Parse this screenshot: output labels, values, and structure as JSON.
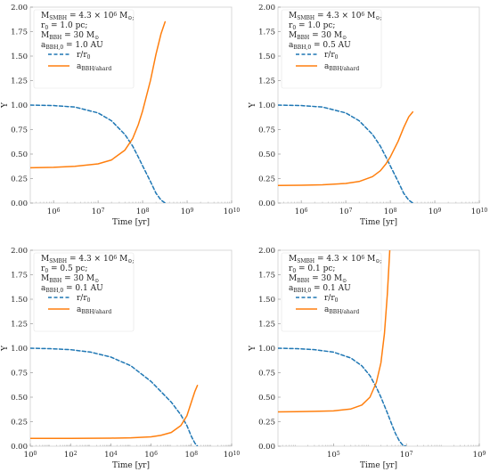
{
  "chart_data": [
    {
      "type": "line",
      "xscale": "log",
      "xlabel": "Time [yr]",
      "ylabel": "Y",
      "xlim": [
        300000,
        10000000000
      ],
      "ylim": [
        0,
        2
      ],
      "xticks": [
        1000000,
        10000000,
        100000000,
        1000000000,
        10000000000
      ],
      "xtick_labels": [
        "10^6",
        "10^7",
        "10^8",
        "10^9",
        "10^10"
      ],
      "yticks": [
        0,
        0.25,
        0.5,
        0.75,
        1.0,
        1.25,
        1.5,
        1.75,
        2.0
      ],
      "ytick_labels": [
        "0.00",
        "0.25",
        "0.50",
        "0.75",
        "1.00",
        "1.25",
        "1.50",
        "1.75",
        "2.00"
      ],
      "legend": {
        "placement": "top-left",
        "lines": [
          "M_SMBH = 4.3 × 10^6 M_⊙;",
          "r_0 = 1.0 pc;",
          "M_BBH = 30 M_⊙",
          "a_BBH,0 = 1.0 AU"
        ],
        "series_labels": [
          "r/r_0",
          "a_BBH/a_hard"
        ]
      },
      "series": [
        {
          "name": "r/r_0",
          "style": "dashed",
          "color": "#1f77b4",
          "x": [
            300000,
            1000000,
            3000000,
            10000000,
            20000000,
            40000000,
            60000000,
            80000000,
            100000000,
            150000000,
            200000000,
            260000000,
            320000000
          ],
          "values": [
            1.0,
            0.995,
            0.98,
            0.92,
            0.84,
            0.7,
            0.58,
            0.47,
            0.38,
            0.22,
            0.1,
            0.03,
            0.0
          ]
        },
        {
          "name": "a_BBH/a_hard",
          "style": "solid",
          "color": "#ff7f0e",
          "x": [
            300000,
            1000000,
            3000000,
            10000000,
            20000000,
            40000000,
            60000000,
            80000000,
            100000000,
            150000000,
            200000000,
            260000000,
            320000000
          ],
          "values": [
            0.36,
            0.365,
            0.375,
            0.4,
            0.44,
            0.54,
            0.66,
            0.8,
            0.94,
            1.25,
            1.52,
            1.73,
            1.85
          ]
        }
      ]
    },
    {
      "type": "line",
      "xscale": "log",
      "xlabel": "Time [yr]",
      "ylabel": "Y",
      "xlim": [
        300000,
        10000000000
      ],
      "ylim": [
        0,
        2
      ],
      "xticks": [
        1000000,
        10000000,
        100000000,
        1000000000,
        10000000000
      ],
      "xtick_labels": [
        "10^6",
        "10^7",
        "10^8",
        "10^9",
        "10^10"
      ],
      "yticks": [
        0,
        0.25,
        0.5,
        0.75,
        1.0,
        1.25,
        1.5,
        1.75,
        2.0
      ],
      "ytick_labels": [
        "0.00",
        "0.25",
        "0.50",
        "0.75",
        "1.00",
        "1.25",
        "1.50",
        "1.75",
        "2.00"
      ],
      "legend": {
        "placement": "top-left",
        "lines": [
          "M_SMBH = 4.3 × 10^6 M_⊙;",
          "r_0 = 1.0 pc;",
          "M_BBH = 30 M_⊙",
          "a_BBH,0 = 0.5 AU"
        ],
        "series_labels": [
          "r/r_0",
          "a_BBH/a_hard"
        ]
      },
      "series": [
        {
          "name": "r/r_0",
          "style": "dashed",
          "color": "#1f77b4",
          "x": [
            300000,
            1000000,
            3000000,
            10000000,
            20000000,
            40000000,
            60000000,
            80000000,
            100000000,
            150000000,
            200000000,
            260000000,
            320000000
          ],
          "values": [
            1.0,
            0.995,
            0.98,
            0.92,
            0.84,
            0.7,
            0.58,
            0.47,
            0.38,
            0.22,
            0.1,
            0.03,
            0.0
          ]
        },
        {
          "name": "a_BBH/a_hard",
          "style": "solid",
          "color": "#ff7f0e",
          "x": [
            300000,
            1000000,
            3000000,
            10000000,
            20000000,
            40000000,
            60000000,
            80000000,
            100000000,
            150000000,
            200000000,
            260000000,
            320000000
          ],
          "values": [
            0.18,
            0.182,
            0.186,
            0.2,
            0.22,
            0.27,
            0.33,
            0.4,
            0.47,
            0.63,
            0.77,
            0.88,
            0.93
          ]
        }
      ]
    },
    {
      "type": "line",
      "xscale": "log",
      "xlabel": "Time [yr]",
      "ylabel": "Y",
      "xlim": [
        1,
        10000000000
      ],
      "ylim": [
        0,
        2
      ],
      "xticks": [
        1,
        100,
        10000,
        1000000,
        100000000,
        10000000000
      ],
      "xtick_labels": [
        "10^0",
        "10^2",
        "10^4",
        "10^6",
        "10^8",
        "10^10"
      ],
      "yticks": [
        0,
        0.25,
        0.5,
        0.75,
        1.0,
        1.25,
        1.5,
        1.75,
        2.0
      ],
      "ytick_labels": [
        "0.00",
        "0.25",
        "0.50",
        "0.75",
        "1.00",
        "1.25",
        "1.50",
        "1.75",
        "2.00"
      ],
      "legend": {
        "placement": "top-left",
        "lines": [
          "M_SMBH = 4.3 × 10^6 M_⊙;",
          "r_0 = 0.5 pc;",
          "M_BBH = 30 M_⊙",
          "a_BBH,0 = 0.1 AU"
        ],
        "series_labels": [
          "r/r_0",
          "a_BBH/a_hard"
        ]
      },
      "series": [
        {
          "name": "r/r_0",
          "style": "dashed",
          "color": "#1f77b4",
          "x": [
            1,
            10,
            100,
            1000,
            10000,
            100000,
            1000000,
            3000000,
            10000000,
            30000000,
            60000000,
            100000000,
            150000000,
            200000000
          ],
          "values": [
            1.0,
            0.995,
            0.985,
            0.96,
            0.91,
            0.82,
            0.66,
            0.56,
            0.45,
            0.32,
            0.21,
            0.1,
            0.03,
            0.0
          ]
        },
        {
          "name": "a_BBH/a_hard",
          "style": "solid",
          "color": "#ff7f0e",
          "x": [
            1,
            10,
            100,
            1000,
            10000,
            100000,
            1000000,
            3000000,
            10000000,
            30000000,
            60000000,
            100000000,
            150000000,
            200000000
          ],
          "values": [
            0.08,
            0.08,
            0.08,
            0.081,
            0.082,
            0.085,
            0.095,
            0.11,
            0.14,
            0.21,
            0.31,
            0.45,
            0.56,
            0.62
          ]
        }
      ]
    },
    {
      "type": "line",
      "xscale": "log",
      "xlabel": "Time [yr]",
      "ylabel": "Y",
      "xlim": [
        3000,
        1000000000
      ],
      "ylim": [
        0,
        2
      ],
      "xticks": [
        100000,
        10000000,
        1000000000
      ],
      "xtick_labels": [
        "10^5",
        "10^7",
        "10^9"
      ],
      "yticks": [
        0,
        0.25,
        0.5,
        0.75,
        1.0,
        1.25,
        1.5,
        1.75,
        2.0
      ],
      "ytick_labels": [
        "0.00",
        "0.25",
        "0.50",
        "0.75",
        "1.00",
        "1.25",
        "1.50",
        "1.75",
        "2.00"
      ],
      "legend": {
        "placement": "top-left",
        "lines": [
          "M_SMBH = 4.3 × 10^6 M_⊙;",
          "r_0 = 0.1 pc;",
          "M_BBH = 30 M_⊙",
          "a_BBH,0 = 0.1 AU"
        ],
        "series_labels": [
          "r/r_0",
          "a_BBH/a_hard"
        ]
      },
      "series": [
        {
          "name": "r/r_0",
          "style": "dashed",
          "color": "#1f77b4",
          "x": [
            3000,
            10000,
            30000,
            100000,
            300000,
            600000,
            1000000,
            1500000,
            2000000,
            3000000,
            4000000,
            5000000,
            6500000,
            8000000,
            9500000
          ],
          "values": [
            1.0,
            0.995,
            0.985,
            0.96,
            0.9,
            0.82,
            0.72,
            0.6,
            0.5,
            0.34,
            0.22,
            0.13,
            0.05,
            0.01,
            0.0
          ]
        },
        {
          "name": "a_BBH/a_hard",
          "style": "solid",
          "color": "#ff7f0e",
          "x": [
            3000,
            10000,
            30000,
            100000,
            300000,
            600000,
            1000000,
            1500000,
            2000000,
            2500000,
            3000000,
            3500000
          ],
          "values": [
            0.35,
            0.352,
            0.356,
            0.36,
            0.38,
            0.42,
            0.5,
            0.65,
            0.85,
            1.15,
            1.55,
            2.0
          ]
        }
      ]
    }
  ]
}
